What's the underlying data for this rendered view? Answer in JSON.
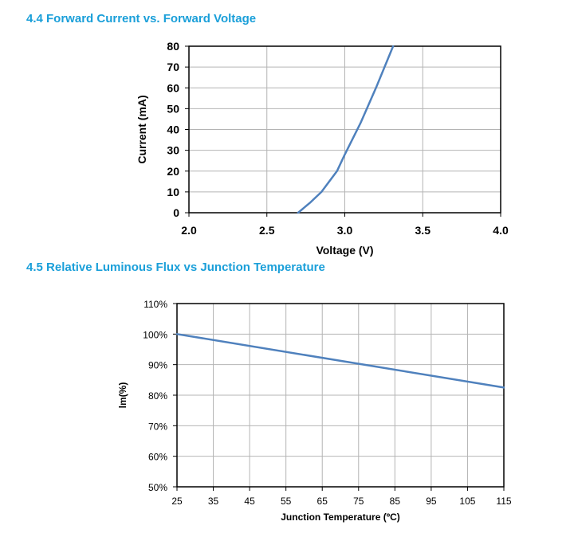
{
  "sections": [
    {
      "title": "4.4  Forward Current vs. Forward Voltage"
    },
    {
      "title": "4.5  Relative Luminous Flux vs Junction Temperature"
    }
  ],
  "chart_data": [
    {
      "type": "line",
      "xlabel": "Voltage (V)",
      "ylabel": "Current (mA)",
      "xlim": [
        2.0,
        4.0
      ],
      "ylim": [
        0,
        80
      ],
      "x_ticks": [
        "2.0",
        "2.5",
        "3.0",
        "3.5",
        "4.0"
      ],
      "y_ticks": [
        "0",
        "10",
        "20",
        "30",
        "40",
        "50",
        "60",
        "70",
        "80"
      ],
      "grid": true,
      "line_color": "#4f81bd",
      "series": [
        {
          "x": [
            2.7,
            2.78,
            2.85,
            2.95,
            3.0,
            3.1,
            3.2,
            3.31
          ],
          "y": [
            0,
            5,
            10,
            20,
            28,
            43,
            60,
            80
          ]
        }
      ]
    },
    {
      "type": "line",
      "xlabel": "Junction Temperature (ºC)",
      "ylabel": "lm(%)",
      "xlim": [
        25,
        115
      ],
      "ylim": [
        50,
        110
      ],
      "x_ticks": [
        "25",
        "35",
        "45",
        "55",
        "65",
        "75",
        "85",
        "95",
        "105",
        "115"
      ],
      "y_ticks": [
        "50%",
        "60%",
        "70%",
        "80%",
        "90%",
        "100%",
        "110%"
      ],
      "grid": true,
      "line_color": "#4f81bd",
      "series": [
        {
          "x": [
            25,
            115
          ],
          "y": [
            100,
            82.5
          ]
        }
      ]
    }
  ]
}
